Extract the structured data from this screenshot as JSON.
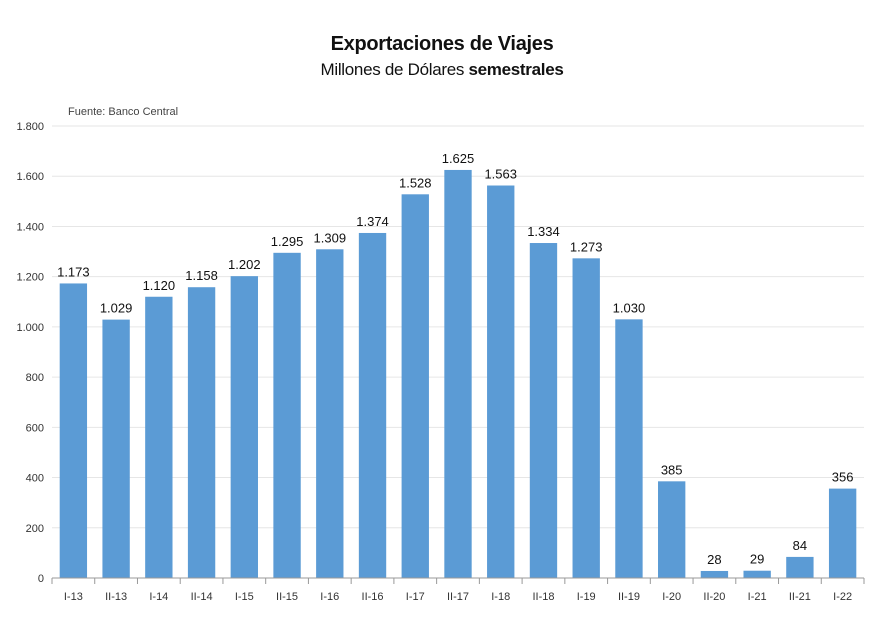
{
  "title": "Exportaciones de Viajes",
  "subtitle_regular": "Millones de Dólares ",
  "subtitle_bold": "semestrales",
  "source": "Fuente: Banco Central",
  "colors": {
    "bar": "#5b9bd5",
    "grid": "#e6e6e6",
    "axis": "#999999"
  },
  "chart_data": {
    "type": "bar",
    "categories": [
      "I-13",
      "II-13",
      "I-14",
      "II-14",
      "I-15",
      "II-15",
      "I-16",
      "II-16",
      "I-17",
      "II-17",
      "I-18",
      "II-18",
      "I-19",
      "II-19",
      "I-20",
      "II-20",
      "I-21",
      "II-21",
      "I-22"
    ],
    "values": [
      1173,
      1029,
      1120,
      1158,
      1202,
      1295,
      1309,
      1374,
      1528,
      1625,
      1563,
      1334,
      1273,
      1030,
      385,
      28,
      29,
      84,
      356
    ],
    "value_labels": [
      "1.173",
      "1.029",
      "1.120",
      "1.158",
      "1.202",
      "1.295",
      "1.309",
      "1.374",
      "1.528",
      "1.625",
      "1.563",
      "1.334",
      "1.273",
      "1.030",
      "385",
      "28",
      "29",
      "84",
      "356"
    ],
    "yticks": [
      0,
      200,
      400,
      600,
      800,
      1000,
      1200,
      1400,
      1600,
      1800
    ],
    "ytick_labels": [
      "0",
      "200",
      "400",
      "600",
      "800",
      "1.000",
      "1.200",
      "1.400",
      "1.600",
      "1.800"
    ],
    "ylim": [
      0,
      1800
    ],
    "grid": true,
    "legend": "none"
  }
}
